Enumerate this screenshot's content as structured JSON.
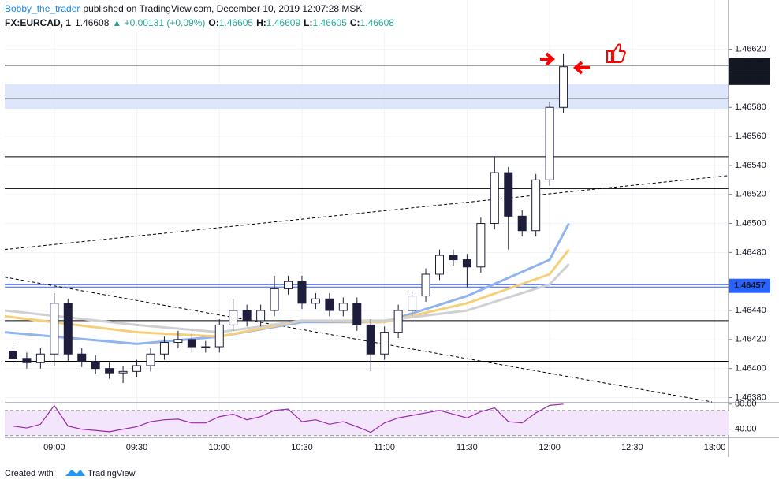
{
  "header": {
    "author": "Bobby_the_trader",
    "published": "published on TradingView.com, December 10, 2019 12:07:28 MSK",
    "symbol": "FX:EURCAD, 1",
    "last": "1.46608",
    "change": "▲ +0.00131 (+0.09%)",
    "o_label": "O:",
    "o": "1.46605",
    "h_label": "H:",
    "h": "1.46609",
    "l_label": "L:",
    "l": "1.46605",
    "c_label": "C:",
    "c": "1.46608"
  },
  "chart_data": {
    "type": "candlestick",
    "x": [
      "08:45",
      "08:50",
      "08:55",
      "09:00",
      "09:05",
      "09:10",
      "09:15",
      "09:20",
      "09:25",
      "09:30",
      "09:35",
      "09:40",
      "09:45",
      "09:50",
      "09:55",
      "10:00",
      "10:05",
      "10:10",
      "10:15",
      "10:20",
      "10:25",
      "10:30",
      "10:35",
      "10:40",
      "10:45",
      "10:50",
      "10:55",
      "11:00",
      "11:05",
      "11:10",
      "11:15",
      "11:20",
      "11:25",
      "11:30",
      "11:35",
      "11:40",
      "11:45",
      "11:50",
      "11:55",
      "12:00",
      "12:05"
    ],
    "open": [
      1.46412,
      1.46407,
      1.46404,
      1.4641,
      1.46445,
      1.4641,
      1.46405,
      1.464,
      1.46397,
      1.46398,
      1.46402,
      1.4641,
      1.46418,
      1.4642,
      1.46415,
      1.46415,
      1.4643,
      1.4644,
      1.46433,
      1.4644,
      1.46455,
      1.4646,
      1.46445,
      1.46448,
      1.4644,
      1.46445,
      1.4643,
      1.4641,
      1.46425,
      1.4644,
      1.4645,
      1.46465,
      1.46478,
      1.46475,
      1.4647,
      1.465,
      1.46535,
      1.46505,
      1.46495,
      1.4653,
      1.4658
    ],
    "high": [
      1.46416,
      1.46411,
      1.46414,
      1.46452,
      1.46448,
      1.46414,
      1.46409,
      1.46404,
      1.46402,
      1.46406,
      1.46414,
      1.46422,
      1.46426,
      1.46424,
      1.46419,
      1.46434,
      1.46448,
      1.46444,
      1.46444,
      1.46464,
      1.46464,
      1.46464,
      1.46452,
      1.46452,
      1.46449,
      1.46449,
      1.46434,
      1.46429,
      1.46444,
      1.46454,
      1.46469,
      1.46482,
      1.46482,
      1.46479,
      1.46504,
      1.46546,
      1.46539,
      1.46509,
      1.46534,
      1.46584,
      1.46617
    ],
    "low": [
      1.46403,
      1.464,
      1.464,
      1.46402,
      1.46405,
      1.46401,
      1.46396,
      1.46393,
      1.4639,
      1.46394,
      1.46398,
      1.46406,
      1.46414,
      1.46411,
      1.46411,
      1.46411,
      1.46426,
      1.46429,
      1.46429,
      1.46436,
      1.46451,
      1.46441,
      1.46441,
      1.46436,
      1.46436,
      1.46426,
      1.46398,
      1.46406,
      1.46421,
      1.46436,
      1.46446,
      1.46461,
      1.46471,
      1.46456,
      1.46466,
      1.46496,
      1.46482,
      1.46491,
      1.46491,
      1.46526,
      1.46576
    ],
    "close": [
      1.46407,
      1.46404,
      1.4641,
      1.46445,
      1.4641,
      1.46405,
      1.464,
      1.46397,
      1.46398,
      1.46402,
      1.4641,
      1.46418,
      1.4642,
      1.46415,
      1.46415,
      1.4643,
      1.4644,
      1.46433,
      1.4644,
      1.46455,
      1.4646,
      1.46445,
      1.46448,
      1.4644,
      1.46445,
      1.4643,
      1.4641,
      1.46425,
      1.4644,
      1.4645,
      1.46465,
      1.46478,
      1.46475,
      1.4647,
      1.465,
      1.46535,
      1.46505,
      1.46495,
      1.4653,
      1.4658,
      1.46608
    ],
    "up_color": "#ffffff",
    "down_color": "#1e1e3c",
    "wick_color": "#1e1e3c",
    "xlim": [
      "08:42",
      "13:05"
    ],
    "xticks": [
      "09:00",
      "09:30",
      "10:00",
      "10:30",
      "11:00",
      "11:30",
      "12:00",
      "12:30",
      "13:00"
    ],
    "ylim": [
      1.46377,
      1.46654
    ],
    "yticks": [
      {
        "value": 1.4662,
        "label": "1.46620"
      },
      {
        "value": 1.4658,
        "label": "1.46580"
      },
      {
        "value": 1.4656,
        "label": "1.46560"
      },
      {
        "value": 1.4654,
        "label": "1.46540"
      },
      {
        "value": 1.4652,
        "label": "1.46520"
      },
      {
        "value": 1.465,
        "label": "1.46500"
      },
      {
        "value": 1.4648,
        "label": "1.46480"
      },
      {
        "value": 1.4644,
        "label": "1.46440"
      },
      {
        "value": 1.4642,
        "label": "1.46420"
      },
      {
        "value": 1.464,
        "label": "1.46400"
      },
      {
        "value": 1.4638,
        "label": "1.46380"
      }
    ],
    "grid": true,
    "levels": [
      1.46609,
      1.46586,
      1.46546,
      1.46524,
      1.46433,
      1.46405
    ],
    "zone": [
      1.46579,
      1.46596
    ],
    "zone_color": "#d6e0fb",
    "support": {
      "value": 1.46457,
      "label": "1.46457",
      "color": "#2962ff"
    },
    "countdown": "00:33",
    "trendlines": [
      {
        "x": [
          "08:42",
          "13:05"
        ],
        "y": [
          1.46482,
          1.46533
        ]
      },
      {
        "x": [
          "08:42",
          "12:59"
        ],
        "y": [
          1.46463,
          1.46377
        ]
      }
    ],
    "moving_averages": [
      {
        "color": "#90b4f0",
        "x": [
          "08:42",
          "09:30",
          "10:00",
          "10:30",
          "11:00",
          "11:30",
          "12:00",
          "12:07"
        ],
        "values": [
          1.46425,
          1.46417,
          1.46422,
          1.46432,
          1.46432,
          1.4645,
          1.46475,
          1.465
        ]
      },
      {
        "color": "#f5cf7a",
        "x": [
          "08:42",
          "09:30",
          "10:00",
          "10:30",
          "11:00",
          "11:30",
          "12:00",
          "12:07"
        ],
        "values": [
          1.46436,
          1.46425,
          1.46422,
          1.46433,
          1.46432,
          1.46445,
          1.46465,
          1.46482
        ]
      },
      {
        "color": "#d0d0d4",
        "x": [
          "08:42",
          "09:30",
          "10:00",
          "10:30",
          "11:00",
          "11:30",
          "12:00",
          "12:07"
        ],
        "values": [
          1.4644,
          1.4643,
          1.46425,
          1.46433,
          1.46433,
          1.4644,
          1.46458,
          1.46472
        ]
      }
    ],
    "rsi": {
      "color": "#9c27b0",
      "values": [
        45,
        42,
        48,
        78,
        45,
        40,
        38,
        36,
        40,
        44,
        52,
        55,
        56,
        50,
        50,
        60,
        64,
        55,
        60,
        70,
        72,
        52,
        55,
        48,
        52,
        44,
        35,
        50,
        58,
        62,
        66,
        70,
        64,
        58,
        68,
        74,
        52,
        50,
        66,
        78,
        80
      ],
      "ylim": [
        27,
        81
      ],
      "yticks": [
        {
          "value": 40,
          "label": "40.00"
        },
        {
          "value": 80,
          "label": "80.00"
        }
      ],
      "bands": [
        70,
        30
      ]
    }
  },
  "footer": {
    "created": "Created with",
    "brand": "TradingView"
  }
}
